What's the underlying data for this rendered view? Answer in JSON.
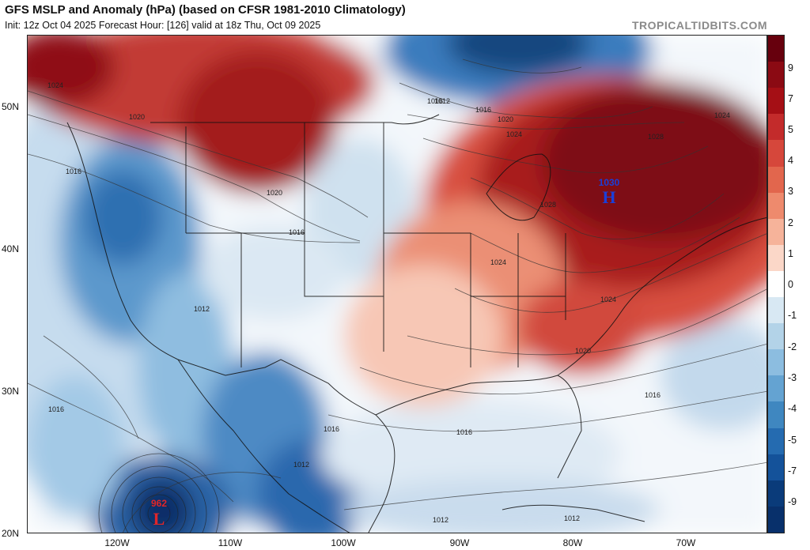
{
  "header": {
    "title": "GFS MSLP and Anomaly (hPa) (based on CFSR 1981-2010 Climatology)",
    "subtitle": "Init: 12z Oct 04 2025   Forecast Hour: [126]   valid at 18z Thu, Oct 09 2025",
    "site": "TROPICALTIDBITS.COM"
  },
  "axes": {
    "lat_labels": [
      "50N",
      "40N",
      "30N",
      "20N"
    ],
    "lon_labels": [
      "120W",
      "110W",
      "100W",
      "90W",
      "80W",
      "70W"
    ]
  },
  "colorbar": {
    "labels": [
      "9",
      "7",
      "5",
      "4",
      "3",
      "2",
      "1",
      "0",
      "-1",
      "-2",
      "-3",
      "-4",
      "-5",
      "-7",
      "-9"
    ],
    "colors": [
      "#67000d",
      "#8b0a13",
      "#a50f15",
      "#c32b2b",
      "#d6473b",
      "#e2664d",
      "#ee8a6d",
      "#f6b39a",
      "#fbd7c8",
      "#ffffff",
      "#d8e8f3",
      "#b3d3e8",
      "#8cbde0",
      "#64a3d2",
      "#3f87c0",
      "#256bb0",
      "#14529a",
      "#0a3b7a",
      "#08306b"
    ]
  },
  "isobar_labels": [
    "1024",
    "1020",
    "1016",
    "1012",
    "1016",
    "1020",
    "1024",
    "1028",
    "1016",
    "1020",
    "1016",
    "1012",
    "1024",
    "1024",
    "1024",
    "1028",
    "1020",
    "1016",
    "1016",
    "1016",
    "1012",
    "1012",
    "1012",
    "1016"
  ],
  "pressure_centers": {
    "high": {
      "value": "1030",
      "letter": "H",
      "color": "#1a3fd9"
    },
    "low": {
      "value": "962",
      "letter": "L",
      "color": "#e0262a"
    }
  }
}
